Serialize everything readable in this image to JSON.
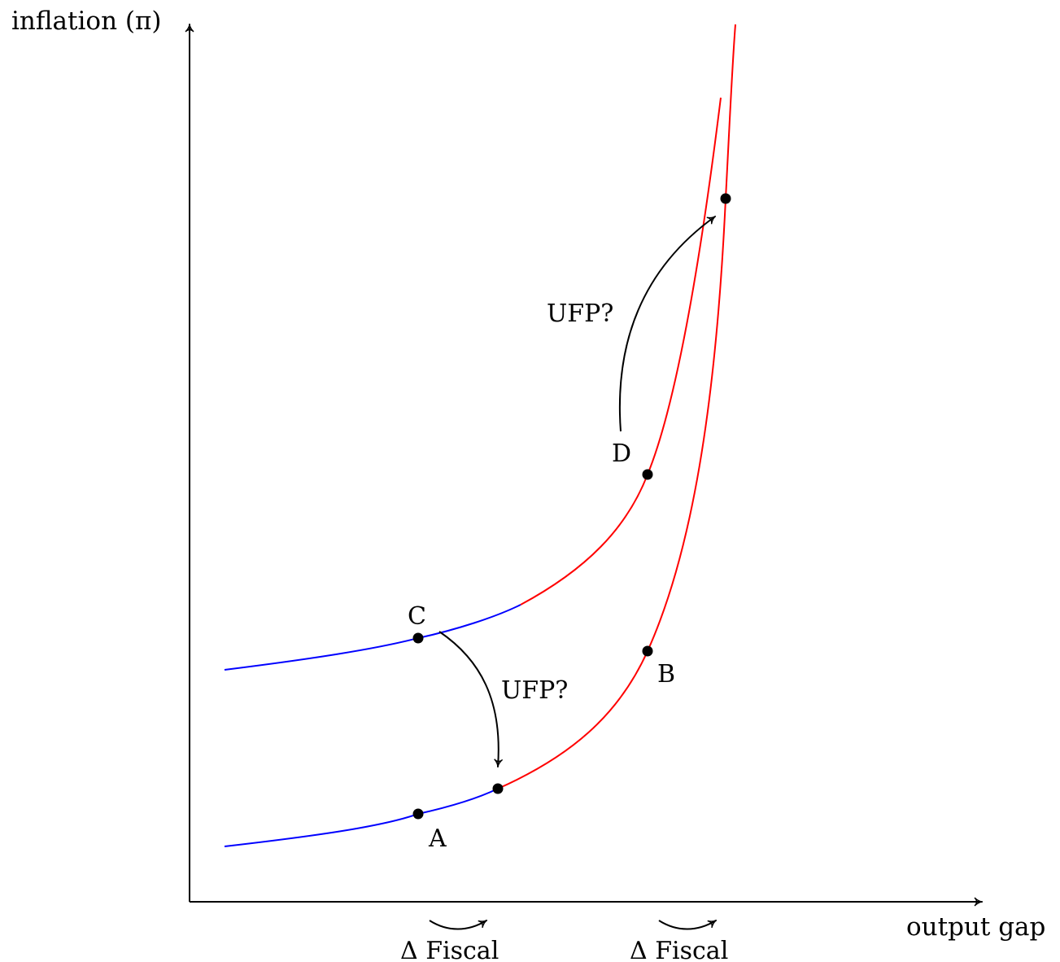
{
  "axes": {
    "y_label": "inflation (π)",
    "x_label": "output gap"
  },
  "points": {
    "A": "A",
    "B": "B",
    "C": "C",
    "D": "D"
  },
  "annotations": {
    "ufp_lower": "UFP?",
    "ufp_upper": "UFP?",
    "fiscal_1": "Δ Fiscal",
    "fiscal_2": "Δ Fiscal"
  },
  "colors": {
    "zero_bound_segment": "#0000ff",
    "normal_segment": "#ff0000",
    "axis": "#000000"
  }
}
